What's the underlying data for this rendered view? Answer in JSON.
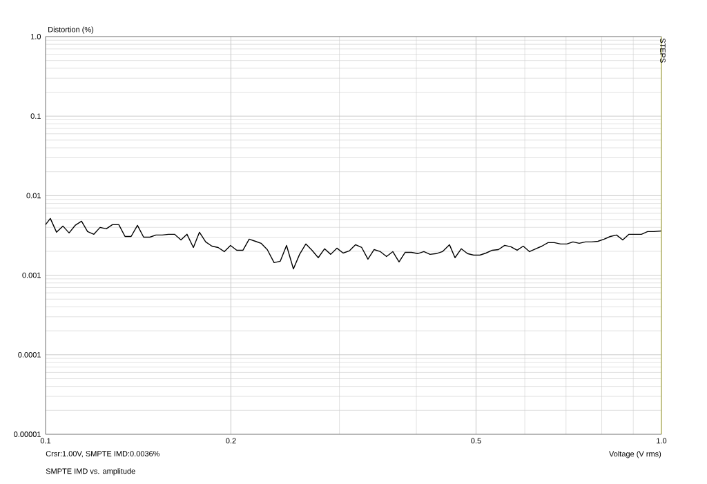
{
  "chart_data": {
    "type": "line",
    "log": "xy",
    "grid": true,
    "ylabel": "Distortion (%)",
    "xlabel": "Voltage (V rms)",
    "annotations": [
      "Crsr:1.00V, SMPTE IMD:0.0036%",
      "SMPTE IMD vs. amplitude",
      "STEPS"
    ],
    "xlim": [
      0.1,
      1.0
    ],
    "ylim": [
      1e-05,
      1.0
    ],
    "xticks": [
      0.1,
      0.2,
      0.5,
      {
        "value": 1.0,
        "label": "1.0"
      }
    ],
    "yticks": [
      {
        "value": 1e-05,
        "label": "0.00001"
      },
      0.0001,
      0.001,
      0.01,
      0.1,
      {
        "value": 1.0,
        "label": "1.0"
      }
    ],
    "ref_lines": [
      {
        "axis": "x",
        "value": 1.0,
        "label": null,
        "color": "#e6e600"
      }
    ],
    "series": [
      {
        "color": "#000000",
        "x": [
          0.1,
          0.1018,
          0.1042,
          0.1067,
          0.1092,
          0.1117,
          0.1144,
          0.117,
          0.1198,
          0.1226,
          0.1255,
          0.1284,
          0.1315,
          0.1346,
          0.1377,
          0.141,
          0.1443,
          0.1477,
          0.1511,
          0.1547,
          0.1583,
          0.162,
          0.1659,
          0.1697,
          0.1738,
          0.1778,
          0.182,
          0.1863,
          0.1907,
          0.1951,
          0.1997,
          0.2044,
          0.2092,
          0.2141,
          0.2192,
          0.2238,
          0.2291,
          0.235,
          0.2405,
          0.2462,
          0.2526,
          0.2585,
          0.2646,
          0.2708,
          0.2772,
          0.2838,
          0.2904,
          0.2972,
          0.3042,
          0.3113,
          0.3186,
          0.3261,
          0.3338,
          0.3416,
          0.3497,
          0.3578,
          0.3663,
          0.375,
          0.3837,
          0.3928,
          0.402,
          0.4114,
          0.421,
          0.431,
          0.441,
          0.4527,
          0.4622,
          0.4731,
          0.4842,
          0.4955,
          0.5072,
          0.519,
          0.5313,
          0.5437,
          0.5565,
          0.5695,
          0.583,
          0.5965,
          0.6106,
          0.625,
          0.6396,
          0.6546,
          0.67,
          0.6859,
          0.702,
          0.7185,
          0.7355,
          0.7526,
          0.7702,
          0.7886,
          0.8072,
          0.826,
          0.8455,
          0.8653,
          0.8858,
          0.9067,
          0.9279,
          0.9497,
          0.9721,
          1.0
        ],
        "values": [
          0.00432,
          0.00517,
          0.00347,
          0.00415,
          0.0034,
          0.00423,
          0.00477,
          0.00354,
          0.00327,
          0.00399,
          0.00383,
          0.00432,
          0.00432,
          0.00307,
          0.00307,
          0.00423,
          0.00301,
          0.00301,
          0.0032,
          0.0032,
          0.00327,
          0.00327,
          0.00278,
          0.00327,
          0.00223,
          0.00347,
          0.00262,
          0.00232,
          0.00223,
          0.00198,
          0.00237,
          0.00206,
          0.00206,
          0.00284,
          0.00267,
          0.00252,
          0.0021,
          0.00144,
          0.0015,
          0.00237,
          0.0012,
          0.00183,
          0.00247,
          0.00206,
          0.00166,
          0.00215,
          0.00183,
          0.00219,
          0.0019,
          0.00202,
          0.00242,
          0.00223,
          0.00159,
          0.0021,
          0.00198,
          0.00172,
          0.00198,
          0.00147,
          0.00194,
          0.00194,
          0.00187,
          0.00198,
          0.00183,
          0.00187,
          0.00198,
          0.00242,
          0.00166,
          0.00215,
          0.00187,
          0.00179,
          0.00179,
          0.0019,
          0.00206,
          0.0021,
          0.00237,
          0.00228,
          0.00206,
          0.00232,
          0.00198,
          0.00215,
          0.00232,
          0.00257,
          0.00257,
          0.00247,
          0.00247,
          0.00262,
          0.00252,
          0.00262,
          0.00262,
          0.00267,
          0.00284,
          0.00307,
          0.0032,
          0.00278,
          0.00327,
          0.00327,
          0.00327,
          0.00354,
          0.00354,
          0.0036
        ]
      }
    ]
  }
}
